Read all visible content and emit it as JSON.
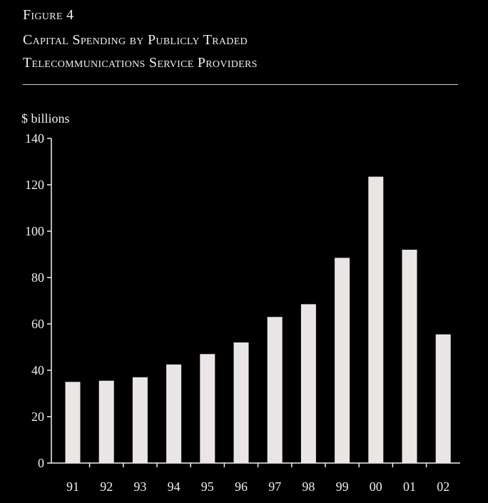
{
  "figure": {
    "label": "Figure 4",
    "title_line1": "Capital Spending by Publicly Traded",
    "title_line2": "Telecommunications Service Providers"
  },
  "colors": {
    "background": "#000000",
    "bar": "#ebe6e6",
    "text": "#f0f0f0",
    "axis": "#f0f0f0"
  },
  "chart_data": {
    "type": "bar",
    "title": "Capital Spending by Publicly Traded Telecommunications Service Providers",
    "ylabel": "$ billions",
    "xlabel": "",
    "categories": [
      "91",
      "92",
      "93",
      "94",
      "95",
      "96",
      "97",
      "98",
      "99",
      "00",
      "01",
      "02"
    ],
    "values": [
      35,
      35.5,
      37,
      42.5,
      47,
      52,
      63,
      68.5,
      88.5,
      123.5,
      92,
      55.5
    ],
    "ylim": [
      0,
      140
    ],
    "yticks": [
      0,
      20,
      40,
      60,
      80,
      100,
      120,
      140
    ],
    "grid": false,
    "legend": "none"
  }
}
